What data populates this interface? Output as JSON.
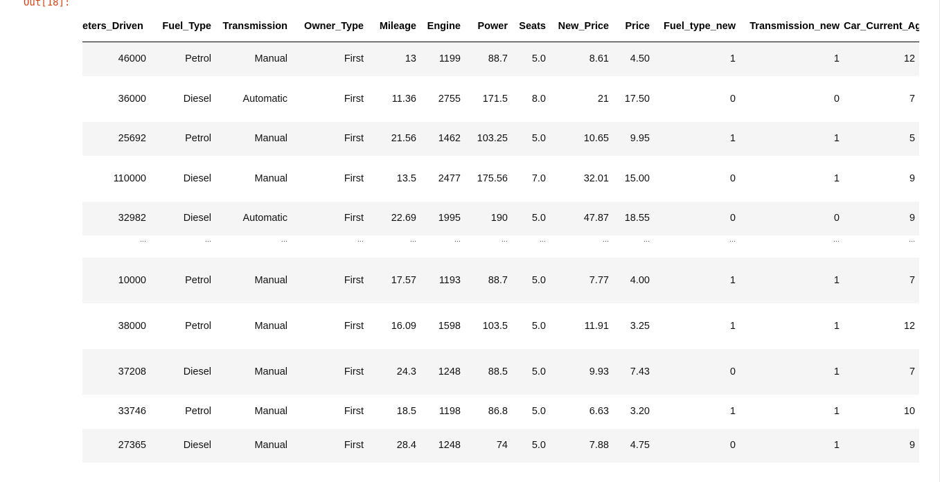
{
  "cell": {
    "out_prompt": "Out[18]:"
  },
  "table": {
    "columns": [
      "eters_Driven",
      "Fuel_Type",
      "Transmission",
      "Owner_Type",
      "Mileage",
      "Engine",
      "Power",
      "Seats",
      "New_Price",
      "Price",
      "Fuel_type_new",
      "Transmission_new",
      "Car_Current_Age"
    ],
    "rows": [
      [
        "46000",
        "Petrol",
        "Manual",
        "First",
        "13",
        "1199",
        "88.7",
        "5.0",
        "8.61",
        "4.50",
        "1",
        "1",
        "12"
      ],
      [
        "36000",
        "Diesel",
        "Automatic",
        "First",
        "11.36",
        "2755",
        "171.5",
        "8.0",
        "21",
        "17.50",
        "0",
        "0",
        "7"
      ],
      [
        "25692",
        "Petrol",
        "Manual",
        "First",
        "21.56",
        "1462",
        "103.25",
        "5.0",
        "10.65",
        "9.95",
        "1",
        "1",
        "5"
      ],
      [
        "110000",
        "Diesel",
        "Manual",
        "First",
        "13.5",
        "2477",
        "175.56",
        "7.0",
        "32.01",
        "15.00",
        "0",
        "1",
        "9"
      ],
      [
        "32982",
        "Diesel",
        "Automatic",
        "First",
        "22.69",
        "1995",
        "190",
        "5.0",
        "47.87",
        "18.55",
        "0",
        "0",
        "9"
      ],
      [
        "...",
        "...",
        "...",
        "...",
        "...",
        "...",
        "...",
        "...",
        "...",
        "...",
        "...",
        "...",
        "..."
      ],
      [
        "10000",
        "Petrol",
        "Manual",
        "First",
        "17.57",
        "1193",
        "88.7",
        "5.0",
        "7.77",
        "4.00",
        "1",
        "1",
        "7"
      ],
      [
        "38000",
        "Petrol",
        "Manual",
        "First",
        "16.09",
        "1598",
        "103.5",
        "5.0",
        "11.91",
        "3.25",
        "1",
        "1",
        "12"
      ],
      [
        "37208",
        "Diesel",
        "Manual",
        "First",
        "24.3",
        "1248",
        "88.5",
        "5.0",
        "9.93",
        "7.43",
        "0",
        "1",
        "7"
      ],
      [
        "33746",
        "Petrol",
        "Manual",
        "First",
        "18.5",
        "1198",
        "86.8",
        "5.0",
        "6.63",
        "3.20",
        "1",
        "1",
        "10"
      ],
      [
        "27365",
        "Diesel",
        "Manual",
        "First",
        "28.4",
        "1248",
        "74",
        "5.0",
        "7.88",
        "4.75",
        "0",
        "1",
        "9"
      ]
    ]
  }
}
